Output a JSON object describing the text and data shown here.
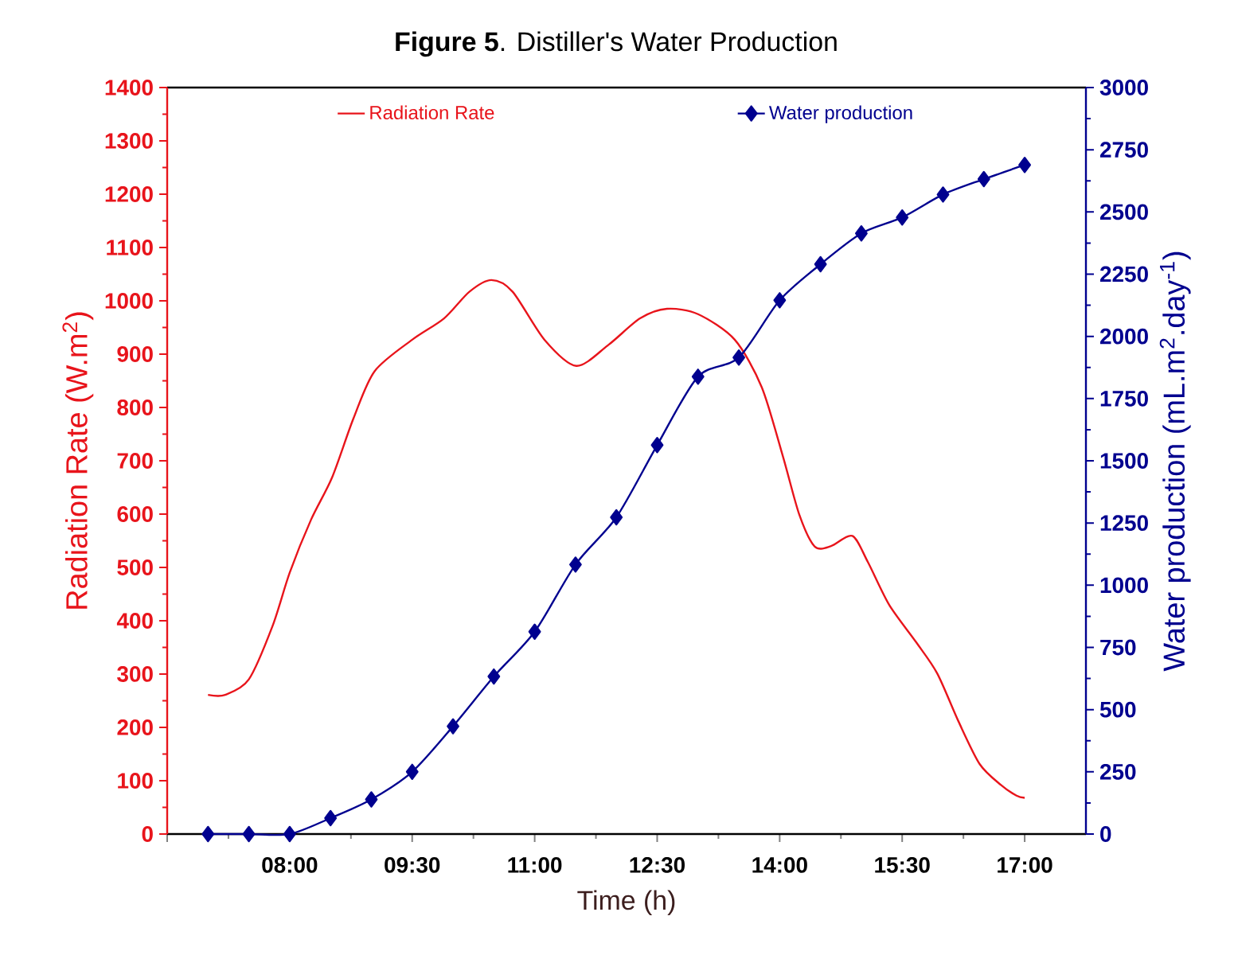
{
  "chart_data": {
    "type": "line",
    "title": "**Figure 5**. Distiller's Water Production",
    "xlabel": "Time (h)",
    "ylabel": "Radiation Rate (W.m$^{2}$)",
    "y2label": "Water production (mL.m$^{2}$.day$^{-1}$)",
    "xlim": [
      6.5,
      17.75
    ],
    "xticks": [
      {
        "value": 6.5,
        "label": null
      },
      {
        "value": 8,
        "label": "08:00"
      },
      {
        "value": 9.5,
        "label": "09:30"
      },
      {
        "value": 11,
        "label": "11:00"
      },
      {
        "value": 12.5,
        "label": "12:30"
      },
      {
        "value": 14,
        "label": "14:00"
      },
      {
        "value": 15.5,
        "label": "15:30"
      },
      {
        "value": 17,
        "label": "17:00"
      }
    ],
    "ylim": [
      0,
      1400
    ],
    "yticks": [
      0,
      100,
      200,
      300,
      400,
      500,
      600,
      700,
      800,
      900,
      1000,
      1100,
      1200,
      1300,
      1400
    ],
    "y2lim": [
      0,
      3000
    ],
    "y2ticks": [
      0,
      250,
      500,
      750,
      1000,
      1250,
      1500,
      1750,
      2000,
      2250,
      2500,
      2750,
      3000
    ],
    "legend": "top",
    "grid": false,
    "series": [
      {
        "name": "Radiation Rate",
        "color": "#e8141b",
        "marker": "none",
        "x": [
          7.0,
          7.21,
          7.5,
          7.79,
          8.0,
          8.26,
          8.52,
          8.78,
          9.04,
          9.5,
          9.89,
          10.2,
          10.47,
          10.73,
          11.12,
          11.51,
          11.9,
          12.29,
          12.62,
          13.0,
          13.45,
          13.78,
          14.04,
          14.24,
          14.43,
          14.63,
          14.89,
          15.08,
          15.34,
          15.67,
          15.93,
          16.19,
          16.45,
          16.71,
          16.9,
          17.0
        ],
        "values": [
          261,
          261,
          290,
          390,
          490,
          589,
          669,
          779,
          868,
          927,
          967,
          1017,
          1039,
          1017,
          927,
          878,
          917,
          967,
          985,
          975,
          927,
          838,
          708,
          599,
          539,
          540,
          559,
          510,
          430,
          360,
          301,
          211,
          131,
          92,
          72,
          68
        ]
      },
      {
        "name": "Water production",
        "axis": "y2",
        "color": "#00008f",
        "marker": "diamond",
        "x": [
          7.0,
          7.5,
          8.0,
          8.5,
          9.0,
          9.5,
          10.0,
          10.5,
          11.0,
          11.5,
          12.0,
          12.5,
          13.0,
          13.5,
          14.0,
          14.5,
          15.0,
          15.5,
          16.0,
          16.5,
          17.0
        ],
        "values": [
          0,
          0,
          0,
          64,
          139,
          250,
          433,
          633,
          813,
          1083,
          1273,
          1563,
          1838,
          1915,
          2145,
          2290,
          2414,
          2478,
          2570,
          2632,
          2689
        ]
      }
    ]
  }
}
